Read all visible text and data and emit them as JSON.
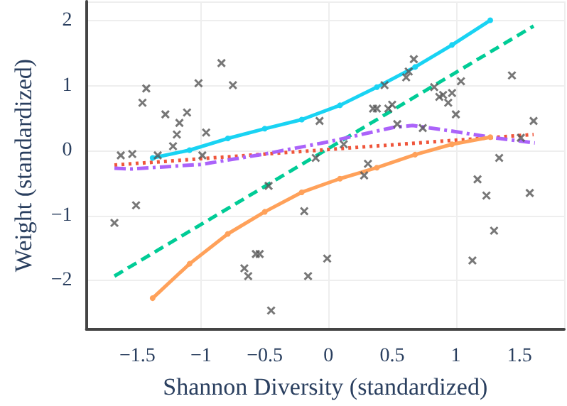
{
  "chart_data": {
    "type": "line",
    "xlabel": "Shannon Diversity (standardized)",
    "ylabel": "Weight (standardized)",
    "xlim": [
      -1.9,
      1.85
    ],
    "ylim": [
      -2.75,
      2.3
    ],
    "xticks": [
      {
        "value": -1.5,
        "label": "−1.5"
      },
      {
        "value": -1,
        "label": "−1"
      },
      {
        "value": -0.5,
        "label": "−0.5"
      },
      0,
      0.5,
      1,
      1.5
    ],
    "yticks": [
      {
        "value": -2,
        "label": "−2"
      },
      {
        "value": -1,
        "label": "−1"
      },
      0,
      1,
      2
    ],
    "grid": true,
    "series": [
      {
        "type": "scatter",
        "color": "#555555",
        "marker": "cross",
        "x": [
          -1.68,
          -1.63,
          -1.54,
          -1.51,
          -1.46,
          -1.43,
          -1.34,
          -1.28,
          -1.22,
          -1.19,
          -1.17,
          -1.11,
          -1.02,
          -0.99,
          -0.96,
          -0.84,
          -0.75,
          -0.66,
          -0.63,
          -0.57,
          -0.54,
          -0.47,
          -0.45,
          -0.07,
          -0.1,
          -0.19,
          -0.16,
          -0.01,
          0.12,
          0.28,
          0.31,
          0.35,
          0.38,
          0.44,
          0.47,
          0.5,
          0.54,
          0.61,
          0.63,
          0.67,
          0.74,
          0.83,
          0.87,
          0.9,
          0.94,
          0.97,
          1.0,
          1.04,
          1.13,
          1.17,
          1.24,
          1.3,
          1.34,
          1.44,
          1.51,
          1.58,
          1.61
        ],
        "values": [
          -1.11,
          -0.07,
          -0.05,
          -0.84,
          0.74,
          0.96,
          -0.07,
          0.56,
          0.07,
          0.25,
          0.43,
          0.59,
          1.04,
          -0.07,
          0.28,
          1.35,
          1.01,
          -1.81,
          -1.93,
          -1.59,
          -1.59,
          -0.54,
          -2.46,
          0.46,
          -0.11,
          -0.93,
          -1.93,
          -1.66,
          0.1,
          -0.38,
          -0.2,
          0.65,
          0.65,
          1.01,
          0.65,
          0.71,
          0.41,
          1.13,
          1.22,
          1.41,
          0.35,
          0.98,
          0.83,
          0.86,
          0.74,
          0.89,
          0.56,
          1.07,
          -1.69,
          -0.44,
          -0.69,
          -1.23,
          -0.11,
          1.16,
          0.2,
          -0.65,
          0.46
        ]
      },
      {
        "color": "#00cc96",
        "line_style": "dashed",
        "marker": "none",
        "x": [
          -1.68,
          1.61
        ],
        "values": [
          -1.93,
          1.92
        ]
      },
      {
        "color": "#ef553b",
        "line_style": "dotted",
        "marker": "none",
        "x": [
          -1.68,
          1.61
        ],
        "values": [
          -0.22,
          0.25
        ]
      },
      {
        "color": "#ab63fa",
        "line_style": "dashdot",
        "marker": "none",
        "x": [
          -1.68,
          -1.54,
          -1.0,
          -0.5,
          -0.37,
          -0.02,
          0.51,
          0.66,
          0.98,
          1.3,
          1.62
        ],
        "values": [
          -0.27,
          -0.28,
          -0.21,
          -0.05,
          0,
          0.13,
          0.36,
          0.39,
          0.3,
          0.2,
          0.12
        ]
      },
      {
        "color": "#19d3f3",
        "line_style": "solid",
        "marker": "circle",
        "x": [
          -1.38,
          -1.09,
          -0.79,
          -0.5,
          -0.21,
          0.09,
          0.38,
          0.68,
          0.97,
          1.27
        ],
        "values": [
          -0.11,
          0.01,
          0.19,
          0.34,
          0.48,
          0.7,
          0.98,
          1.29,
          1.63,
          2.01
        ]
      },
      {
        "color": "#ffa15a",
        "line_style": "solid",
        "marker": "circle",
        "x": [
          -1.38,
          -1.09,
          -0.79,
          -0.5,
          -0.21,
          0.09,
          0.38,
          0.68,
          0.97,
          1.27
        ],
        "values": [
          -2.27,
          -1.74,
          -1.28,
          -0.94,
          -0.64,
          -0.43,
          -0.26,
          -0.06,
          0.1,
          0.21
        ]
      }
    ]
  }
}
